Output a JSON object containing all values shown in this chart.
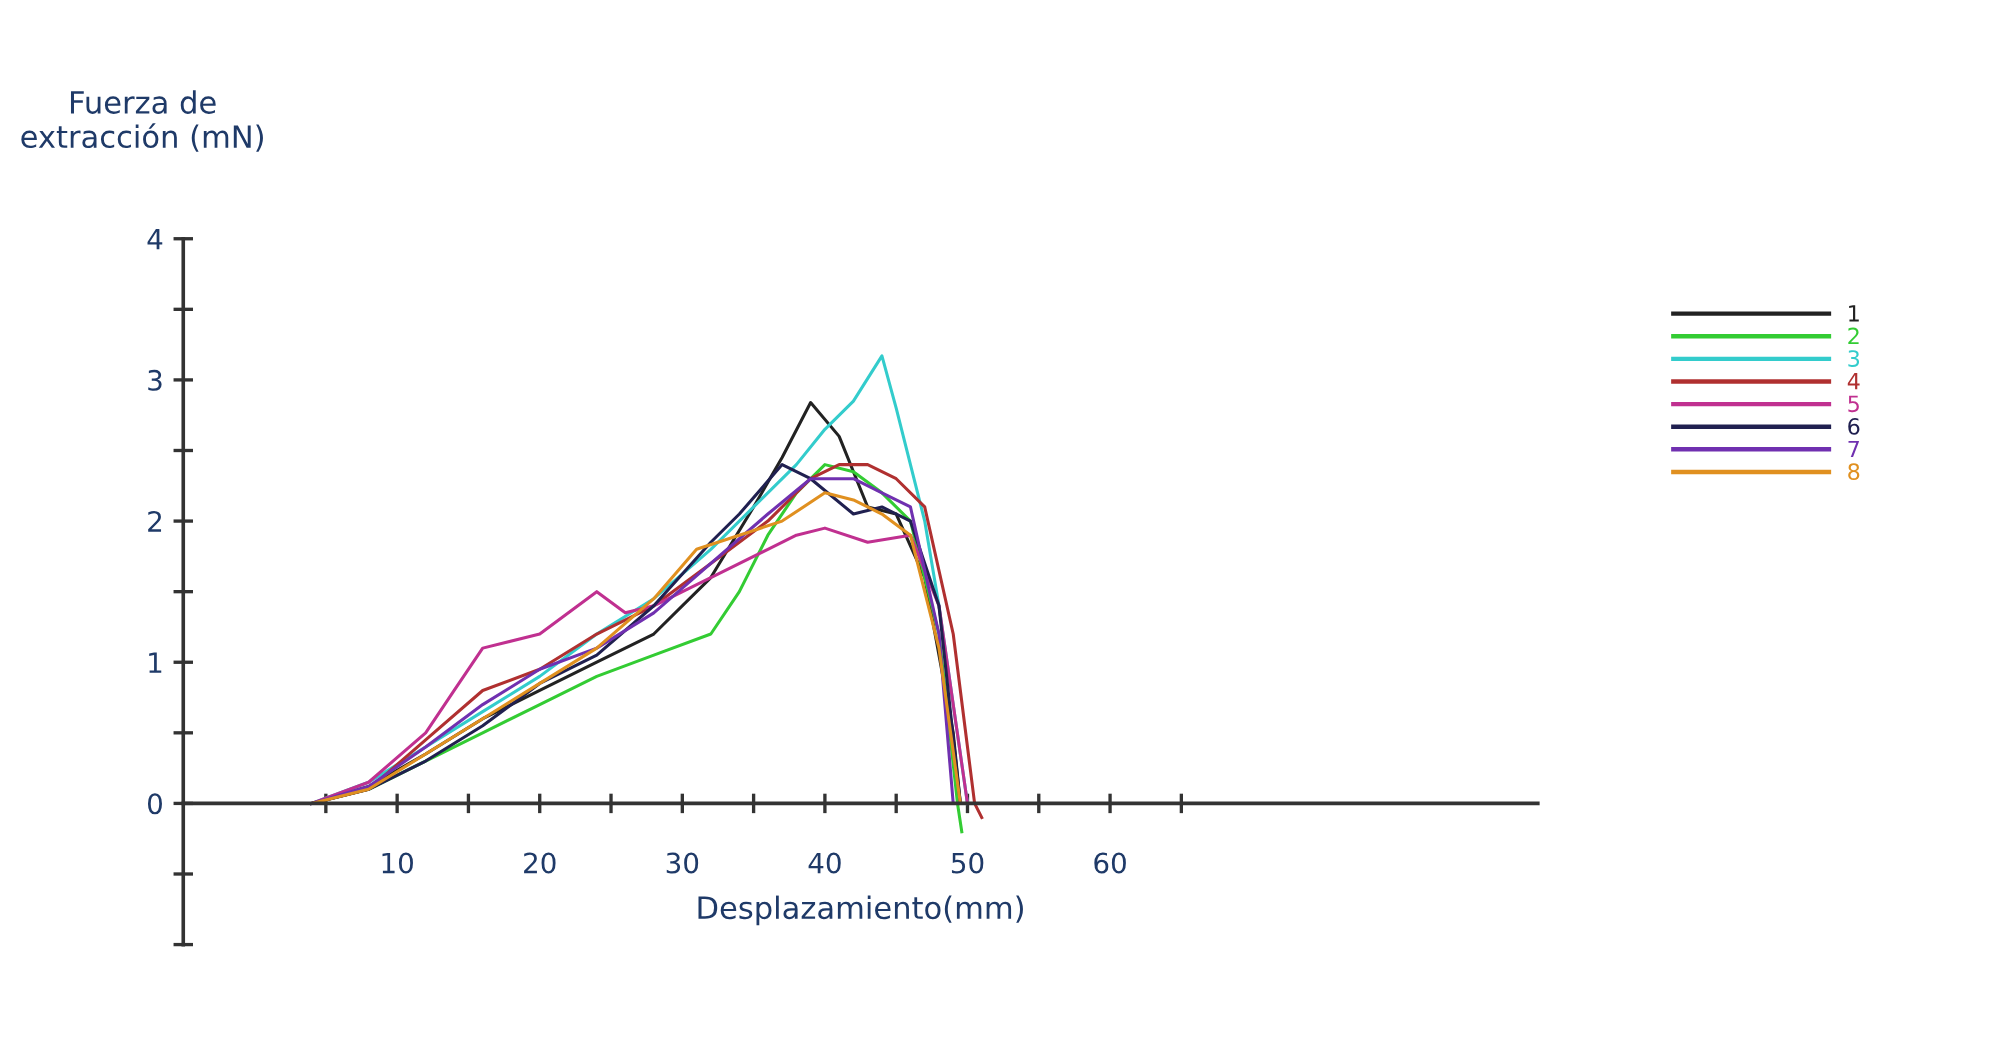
{
  "chart_data": {
    "type": "line",
    "ylabel": "Fuerza de\nextracción (mN)",
    "xlabel": "Desplazamiento(mm)",
    "xlim": [
      -5,
      90
    ],
    "ylim": [
      -1,
      4
    ],
    "xticks": [
      {
        "value": 5,
        "label": null
      },
      10,
      {
        "value": 15,
        "label": null
      },
      20,
      {
        "value": 25,
        "label": null
      },
      30,
      {
        "value": 35,
        "label": null
      },
      40,
      {
        "value": 45,
        "label": null
      },
      50,
      {
        "value": 55,
        "label": null
      },
      60,
      {
        "value": 65,
        "label": null
      }
    ],
    "yticks": [
      {
        "value": -1,
        "label": null
      },
      {
        "value": -0.5,
        "label": null
      },
      0,
      {
        "value": 0.5,
        "label": null
      },
      1,
      {
        "value": 1.5,
        "label": null
      },
      2,
      {
        "value": 2.5,
        "label": null
      },
      3,
      {
        "value": 3.5,
        "label": null
      },
      4
    ],
    "grid": false,
    "legend": "right",
    "line_style": "solid",
    "marker": "none",
    "series": [
      {
        "name": "1",
        "color": "#222222",
        "x": [
          4,
          8,
          12,
          16,
          20,
          24,
          28,
          32,
          35,
          37,
          39,
          41,
          43,
          45,
          47,
          49,
          49.5
        ],
        "values": [
          0,
          0.12,
          0.35,
          0.6,
          0.8,
          1.0,
          1.2,
          1.6,
          2.1,
          2.45,
          2.84,
          2.6,
          2.1,
          2.05,
          1.6,
          0.5,
          0
        ]
      },
      {
        "name": "2",
        "color": "#33cc33",
        "x": [
          4,
          8,
          12,
          16,
          20,
          24,
          28,
          32,
          34,
          36,
          38,
          40,
          42,
          44,
          46,
          48,
          49.3,
          49.6
        ],
        "values": [
          0,
          0.1,
          0.3,
          0.5,
          0.7,
          0.9,
          1.05,
          1.2,
          1.5,
          1.9,
          2.2,
          2.4,
          2.35,
          2.2,
          2.0,
          1.2,
          0,
          -0.2
        ]
      },
      {
        "name": "3",
        "color": "#33cccc",
        "x": [
          4,
          8,
          12,
          16,
          20,
          24,
          28,
          32,
          35,
          38,
          40,
          42,
          44,
          45,
          46,
          47,
          48,
          50
        ],
        "values": [
          0,
          0.15,
          0.4,
          0.65,
          0.9,
          1.2,
          1.45,
          1.8,
          2.1,
          2.4,
          2.65,
          2.85,
          3.17,
          2.8,
          2.4,
          2.0,
          1.4,
          0
        ]
      },
      {
        "name": "4",
        "color": "#b03030",
        "x": [
          4,
          8,
          12,
          16,
          20,
          24,
          28,
          32,
          36,
          39,
          41,
          43,
          45,
          47,
          49,
          50.5,
          51
        ],
        "values": [
          0,
          0.1,
          0.45,
          0.8,
          0.95,
          1.2,
          1.4,
          1.7,
          2.0,
          2.3,
          2.4,
          2.4,
          2.3,
          2.1,
          1.2,
          0,
          -0.1
        ]
      },
      {
        "name": "5",
        "color": "#c03090",
        "x": [
          4,
          8,
          12,
          14,
          16,
          20,
          24,
          26,
          28,
          32,
          36,
          38,
          40,
          43,
          46,
          48,
          50
        ],
        "values": [
          0,
          0.15,
          0.5,
          0.8,
          1.1,
          1.2,
          1.5,
          1.35,
          1.4,
          1.6,
          1.8,
          1.9,
          1.95,
          1.85,
          1.9,
          1.4,
          0
        ]
      },
      {
        "name": "6",
        "color": "#202050",
        "x": [
          4,
          8,
          12,
          16,
          20,
          24,
          28,
          32,
          34,
          37,
          39,
          42,
          44,
          46,
          48,
          49.5
        ],
        "values": [
          0,
          0.1,
          0.3,
          0.55,
          0.85,
          1.05,
          1.4,
          1.85,
          2.05,
          2.4,
          2.3,
          2.05,
          2.1,
          2.0,
          1.4,
          0
        ]
      },
      {
        "name": "7",
        "color": "#7030b0",
        "x": [
          4,
          8,
          12,
          16,
          20,
          24,
          28,
          32,
          36,
          39,
          42,
          44,
          46,
          48,
          49
        ],
        "values": [
          0,
          0.12,
          0.4,
          0.7,
          0.95,
          1.1,
          1.35,
          1.7,
          2.05,
          2.3,
          2.3,
          2.2,
          2.1,
          1.2,
          0
        ]
      },
      {
        "name": "8",
        "color": "#e09020",
        "x": [
          -5,
          4,
          8,
          12,
          16,
          20,
          24,
          28,
          31,
          34,
          37,
          40,
          42,
          44,
          46,
          48,
          49.5
        ],
        "values": [
          0,
          0,
          0.1,
          0.35,
          0.6,
          0.85,
          1.1,
          1.45,
          1.8,
          1.9,
          2.0,
          2.2,
          2.15,
          2.05,
          1.9,
          1.1,
          0
        ]
      }
    ]
  }
}
